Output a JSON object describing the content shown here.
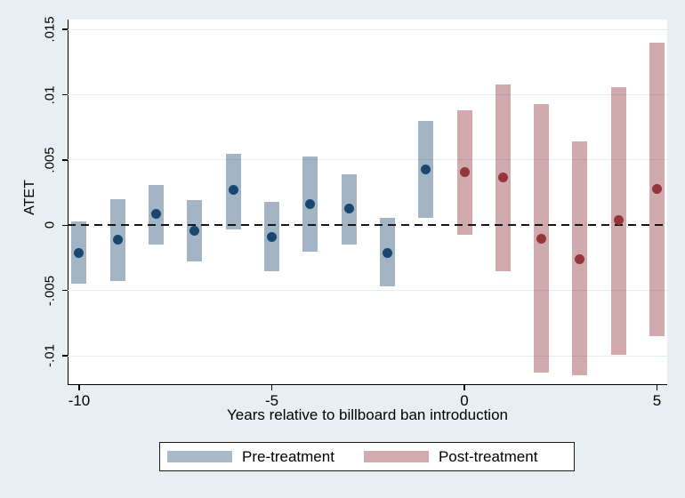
{
  "figure": {
    "background_color": "#e8eff2",
    "plot_background_color": "#ffffff",
    "gridline_color": "#e2edef",
    "axis_color": "#000000"
  },
  "chart_data": {
    "type": "scatter",
    "subtype": "event-study point estimates with confidence interval bars",
    "title": "",
    "xlabel": "Years relative to billboard ban introduction",
    "ylabel": "ATET",
    "grid": true,
    "legend_position": "bottom",
    "xlim": [
      -10.3,
      5.265
    ],
    "ylim": [
      -0.01224,
      0.01576
    ],
    "zero_reference_line": {
      "value": 0,
      "style": "dashed",
      "color": "#161616"
    },
    "yticks": [
      {
        "value": 0.015,
        "label": ".015"
      },
      {
        "value": 0.01,
        "label": ".01"
      },
      {
        "value": 0.005,
        "label": ".005"
      },
      {
        "value": 0,
        "label": "0"
      },
      {
        "value": -0.005,
        "label": "-.005"
      },
      {
        "value": -0.01,
        "label": "-.01"
      }
    ],
    "xticks": [
      {
        "value": -10,
        "label": "-10"
      },
      {
        "value": -5,
        "label": "-5"
      },
      {
        "value": 0,
        "label": "0"
      },
      {
        "value": 5,
        "label": "5"
      }
    ],
    "series": [
      {
        "name": "Pre-treatment",
        "band_color": "rgba(26,71,111,0.40)",
        "dot_color": "#1a476f",
        "points": [
          {
            "x": -10,
            "est": -0.0021,
            "lo": -0.0045,
            "hi": 0.0003
          },
          {
            "x": -9,
            "est": -0.0011,
            "lo": -0.0043,
            "hi": 0.002
          },
          {
            "x": -8,
            "est": 0.0009,
            "lo": -0.0015,
            "hi": 0.0031
          },
          {
            "x": -7,
            "est": -0.0004,
            "lo": -0.0028,
            "hi": 0.0019
          },
          {
            "x": -6,
            "est": 0.0027,
            "lo": -0.0003,
            "hi": 0.0055
          },
          {
            "x": -5,
            "est": -0.0009,
            "lo": -0.0035,
            "hi": 0.0018
          },
          {
            "x": -4,
            "est": 0.0016,
            "lo": -0.002,
            "hi": 0.0053
          },
          {
            "x": -3,
            "est": 0.0013,
            "lo": -0.0015,
            "hi": 0.0039
          },
          {
            "x": -2,
            "est": -0.0021,
            "lo": -0.0047,
            "hi": 0.0006
          },
          {
            "x": -1,
            "est": 0.0043,
            "lo": 0.0006,
            "hi": 0.008
          }
        ]
      },
      {
        "name": "Post-treatment",
        "band_color": "rgba(144,53,59,0.42)",
        "dot_color": "#94353c",
        "points": [
          {
            "x": 0,
            "est": 0.0041,
            "lo": -0.0007,
            "hi": 0.0088
          },
          {
            "x": 1,
            "est": 0.0037,
            "lo": -0.0035,
            "hi": 0.0108
          },
          {
            "x": 2,
            "est": -0.001,
            "lo": -0.0113,
            "hi": 0.0093
          },
          {
            "x": 3,
            "est": -0.0026,
            "lo": -0.0115,
            "hi": 0.0064
          },
          {
            "x": 4,
            "est": 0.0004,
            "lo": -0.0099,
            "hi": 0.0106
          },
          {
            "x": 5,
            "est": 0.0028,
            "lo": -0.0085,
            "hi": 0.014
          }
        ]
      }
    ]
  },
  "legend": {
    "items": [
      {
        "label": "Pre-treatment",
        "color": "#a9b9c8"
      },
      {
        "label": "Post-treatment",
        "color": "#d2abaf"
      }
    ]
  }
}
